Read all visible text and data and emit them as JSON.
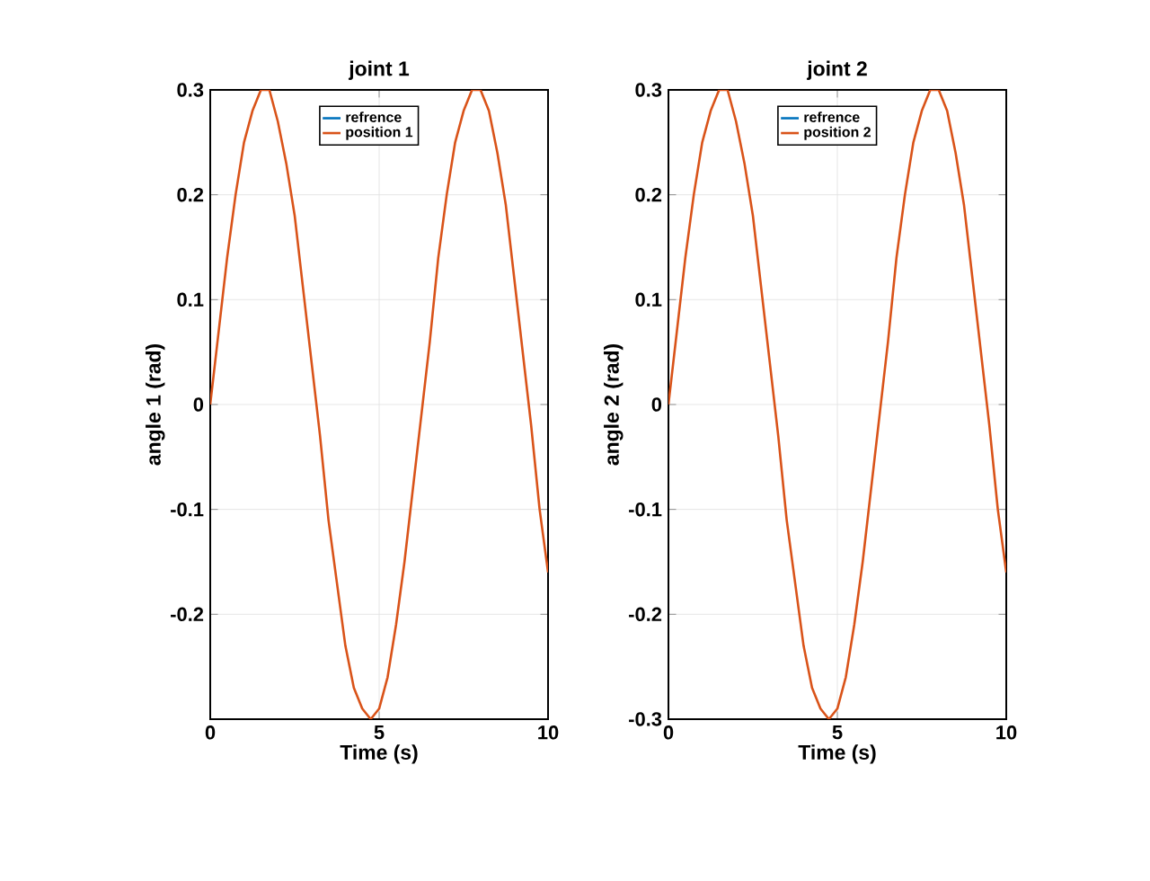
{
  "chart_data": [
    {
      "type": "line",
      "title": "joint 1",
      "xlabel": "Time (s)",
      "ylabel": "angle 1 (rad)",
      "xlim": [
        0,
        10
      ],
      "ylim": [
        -0.3,
        0.3
      ],
      "xticks": [
        0,
        5,
        10
      ],
      "yticks": [
        -0.2,
        -0.1,
        0,
        0.1,
        0.2,
        0.3
      ],
      "grid": true,
      "legend": "top",
      "x": [
        0,
        0.25,
        0.5,
        0.75,
        1,
        1.25,
        1.5,
        1.75,
        2,
        2.25,
        2.5,
        2.75,
        3,
        3.25,
        3.5,
        3.75,
        4,
        4.25,
        4.5,
        4.75,
        5,
        5.25,
        5.5,
        5.75,
        6,
        6.25,
        6.5,
        6.75,
        7,
        7.25,
        7.5,
        7.75,
        8,
        8.25,
        8.5,
        8.75,
        9,
        9.25,
        9.5,
        9.75,
        10
      ],
      "series": [
        {
          "name": "refrence",
          "color": "#0072bd",
          "values": [
            null,
            null,
            null,
            null,
            null,
            null,
            null,
            null,
            null,
            null,
            null,
            null,
            null,
            null,
            null,
            null,
            null,
            null,
            null,
            null,
            null,
            null,
            null,
            null,
            null,
            null,
            null,
            null,
            null,
            null,
            null,
            null,
            null,
            null,
            null,
            null,
            null,
            null,
            null,
            null,
            null
          ]
        },
        {
          "name": "position 1",
          "color": "#d95319",
          "values": [
            0,
            0.07,
            0.14,
            0.2,
            0.25,
            0.28,
            0.3,
            0.3,
            0.27,
            0.23,
            0.18,
            0.11,
            0.04,
            -0.03,
            -0.11,
            -0.17,
            -0.23,
            -0.27,
            -0.29,
            -0.3,
            -0.29,
            -0.26,
            -0.21,
            -0.15,
            -0.08,
            -0.01,
            0.06,
            0.14,
            0.2,
            0.25,
            0.28,
            0.3,
            0.3,
            0.28,
            0.24,
            0.19,
            0.12,
            0.05,
            -0.02,
            -0.1,
            -0.16
          ]
        }
      ]
    },
    {
      "type": "line",
      "title": "joint 2",
      "xlabel": "Time (s)",
      "ylabel": "angle 2 (rad)",
      "xlim": [
        0,
        10
      ],
      "ylim": [
        -0.3,
        0.3
      ],
      "xticks": [
        0,
        5,
        10
      ],
      "yticks": [
        -0.3,
        -0.2,
        -0.1,
        0,
        0.1,
        0.2,
        0.3
      ],
      "grid": true,
      "legend": "top",
      "x": [
        0,
        0.25,
        0.5,
        0.75,
        1,
        1.25,
        1.5,
        1.75,
        2,
        2.25,
        2.5,
        2.75,
        3,
        3.25,
        3.5,
        3.75,
        4,
        4.25,
        4.5,
        4.75,
        5,
        5.25,
        5.5,
        5.75,
        6,
        6.25,
        6.5,
        6.75,
        7,
        7.25,
        7.5,
        7.75,
        8,
        8.25,
        8.5,
        8.75,
        9,
        9.25,
        9.5,
        9.75,
        10
      ],
      "series": [
        {
          "name": "refrence",
          "color": "#0072bd",
          "values": [
            null,
            null,
            null,
            null,
            null,
            null,
            null,
            null,
            null,
            null,
            null,
            null,
            null,
            null,
            null,
            null,
            null,
            null,
            null,
            null,
            null,
            null,
            null,
            null,
            null,
            null,
            null,
            null,
            null,
            null,
            null,
            null,
            null,
            null,
            null,
            null,
            null,
            null,
            null,
            null,
            null
          ]
        },
        {
          "name": "position 2",
          "color": "#d95319",
          "values": [
            0,
            0.07,
            0.14,
            0.2,
            0.25,
            0.28,
            0.3,
            0.3,
            0.27,
            0.23,
            0.18,
            0.11,
            0.04,
            -0.03,
            -0.11,
            -0.17,
            -0.23,
            -0.27,
            -0.29,
            -0.3,
            -0.29,
            -0.26,
            -0.21,
            -0.15,
            -0.08,
            -0.01,
            0.06,
            0.14,
            0.2,
            0.25,
            0.28,
            0.3,
            0.3,
            0.28,
            0.24,
            0.19,
            0.12,
            0.05,
            -0.02,
            -0.1,
            -0.16
          ]
        }
      ]
    }
  ]
}
